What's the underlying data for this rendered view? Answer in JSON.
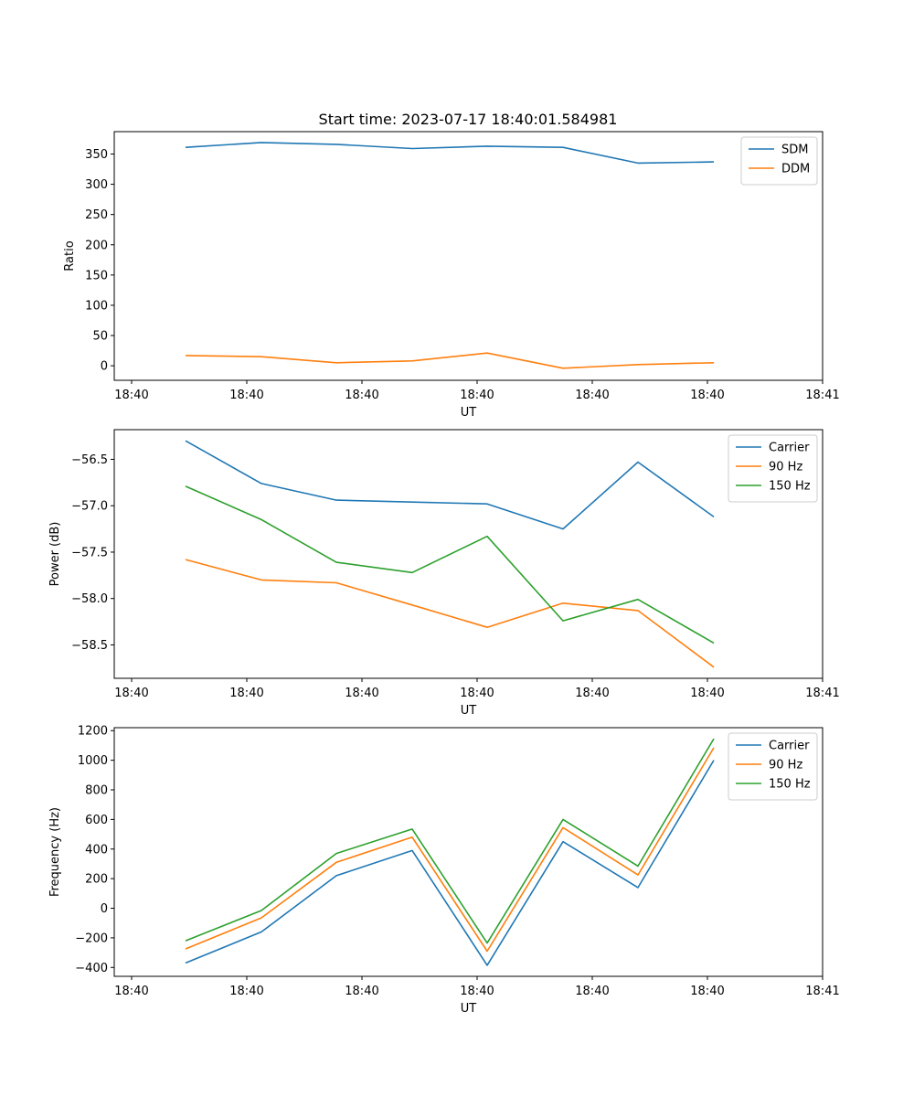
{
  "figure": {
    "title": "Start time: 2023-07-17 18:40:01.584981"
  },
  "colors": {
    "blue": "#1f77b4",
    "orange": "#ff7f0e",
    "green": "#2ca02c"
  },
  "chart_data": [
    {
      "type": "line",
      "title": "Start time: 2023-07-17 18:40:01.584981",
      "xlabel": "UT",
      "ylabel": "Ratio",
      "x_ticks": [
        "18:40",
        "18:40",
        "18:40",
        "18:40",
        "18:40",
        "18:40",
        "18:41"
      ],
      "yticks": [
        0,
        50,
        100,
        150,
        200,
        250,
        300,
        350
      ],
      "ytick_labels": [
        "0",
        "50",
        "100",
        "150",
        "200",
        "250",
        "300",
        "350"
      ],
      "ylim": [
        -24,
        387
      ],
      "legend": "top-right",
      "series": [
        {
          "name": "SDM",
          "color": "#1f77b4",
          "values": [
            361,
            369,
            366,
            359,
            363,
            361,
            335,
            337
          ]
        },
        {
          "name": "DDM",
          "color": "#ff7f0e",
          "values": [
            17,
            15,
            5,
            8,
            21,
            -4,
            2,
            5
          ]
        }
      ]
    },
    {
      "type": "line",
      "xlabel": "UT",
      "ylabel": "Power (dB)",
      "x_ticks": [
        "18:40",
        "18:40",
        "18:40",
        "18:40",
        "18:40",
        "18:40",
        "18:41"
      ],
      "yticks": [
        -58.5,
        -58.0,
        -57.5,
        -57.0,
        -56.5
      ],
      "ytick_labels": [
        "−58.5",
        "−58.0",
        "−57.5",
        "−57.0",
        "−56.5"
      ],
      "ylim": [
        -58.86,
        -56.18
      ],
      "legend": "top-right",
      "series": [
        {
          "name": "Carrier",
          "color": "#1f77b4",
          "values": [
            -56.3,
            -56.76,
            -56.94,
            -56.96,
            -56.98,
            -57.25,
            -56.53,
            -57.12
          ]
        },
        {
          "name": "90 Hz",
          "color": "#ff7f0e",
          "values": [
            -57.58,
            -57.8,
            -57.83,
            -58.07,
            -58.31,
            -58.05,
            -58.13,
            -58.74
          ]
        },
        {
          "name": "150 Hz",
          "color": "#2ca02c",
          "values": [
            -56.79,
            -57.15,
            -57.61,
            -57.72,
            -57.33,
            -58.24,
            -58.01,
            -58.48
          ]
        }
      ]
    },
    {
      "type": "line",
      "xlabel": "UT",
      "ylabel": "Frequency (Hz)",
      "x_ticks": [
        "18:40",
        "18:40",
        "18:40",
        "18:40",
        "18:40",
        "18:40",
        "18:41"
      ],
      "yticks": [
        -400,
        -200,
        0,
        200,
        400,
        600,
        800,
        1000,
        1200
      ],
      "ytick_labels": [
        "−400",
        "−200",
        "0",
        "200",
        "400",
        "600",
        "800",
        "1000",
        "1200"
      ],
      "ylim": [
        -460,
        1220
      ],
      "legend": "top-right",
      "series": [
        {
          "name": "Carrier",
          "color": "#1f77b4",
          "values": [
            -370,
            -160,
            220,
            390,
            -385,
            450,
            140,
            1000
          ]
        },
        {
          "name": "90 Hz",
          "color": "#ff7f0e",
          "values": [
            -275,
            -65,
            310,
            480,
            -290,
            545,
            225,
            1085
          ]
        },
        {
          "name": "150 Hz",
          "color": "#2ca02c",
          "values": [
            -220,
            -15,
            370,
            535,
            -235,
            600,
            285,
            1145
          ]
        }
      ]
    }
  ]
}
